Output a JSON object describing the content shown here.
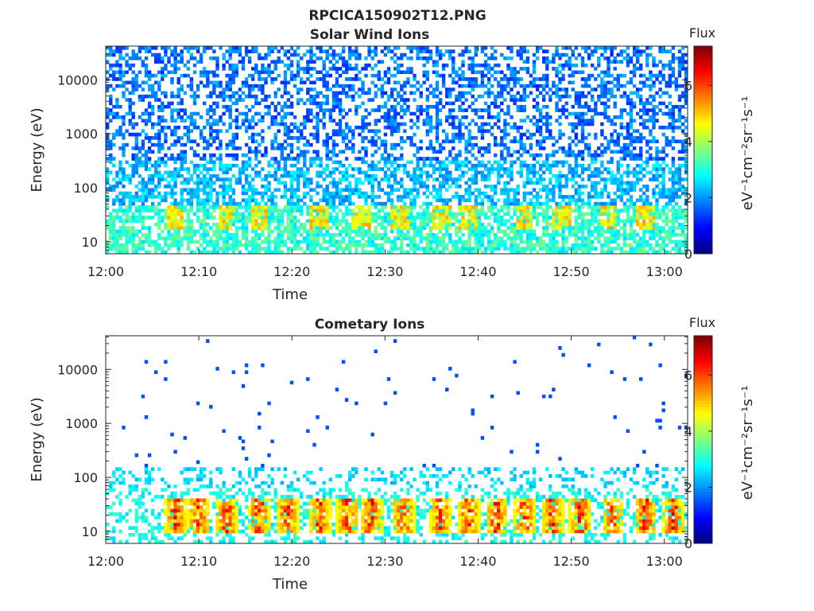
{
  "figure_title": "RPCICA150902T12.PNG",
  "chart_data": [
    {
      "type": "heatmap",
      "title": "Solar Wind Ions",
      "xlabel": "Time",
      "ylabel": "Energy (eV)",
      "x_ticks": [
        "12:00",
        "12:10",
        "12:20",
        "12:30",
        "12:40",
        "12:50",
        "13:00"
      ],
      "x_range_minutes": [
        0,
        62.5
      ],
      "y_scale": "log",
      "y_ticks": [
        10,
        100,
        1000,
        10000
      ],
      "y_tick_labels": [
        "10",
        "100",
        "1000",
        "10000"
      ],
      "y_range": [
        6,
        42000
      ],
      "colorbar": {
        "title": "Flux",
        "label": "eV⁻¹cm⁻²sr⁻¹s⁻¹",
        "range": [
          0,
          7.4
        ],
        "ticks": [
          0,
          2,
          4,
          6
        ],
        "colormap": "jet"
      },
      "description_levels": {
        "high_energy_flux_range": [
          1.5,
          2.5
        ],
        "low_energy_flux_range": [
          2.5,
          5.0
        ],
        "peak_energy_eV": 30,
        "peak_times_minutes": [
          7.5,
          13,
          16.5,
          23,
          27.5,
          31.5,
          36,
          39,
          45,
          49,
          54,
          58
        ]
      }
    },
    {
      "type": "heatmap",
      "title": "Cometary Ions",
      "xlabel": "Time",
      "ylabel": "Energy (eV)",
      "x_ticks": [
        "12:00",
        "12:10",
        "12:20",
        "12:30",
        "12:40",
        "12:50",
        "13:00"
      ],
      "x_range_minutes": [
        0,
        62.5
      ],
      "y_scale": "log",
      "y_ticks": [
        10,
        100,
        1000,
        10000
      ],
      "y_tick_labels": [
        "10",
        "100",
        "1000",
        "10000"
      ],
      "y_range": [
        6,
        42000
      ],
      "colorbar": {
        "title": "Flux",
        "label": "eV⁻¹cm⁻²sr⁻¹s⁻¹",
        "range": [
          0,
          7.4
        ],
        "ticks": [
          0,
          2,
          4,
          6
        ],
        "colormap": "jet"
      },
      "description_levels": {
        "background_flux_range": [
          2.0,
          3.0
        ],
        "peak_flux": 7.0,
        "peak_energy_eV": 20,
        "burst_times_minutes": [
          7.5,
          10,
          13,
          16.5,
          19.5,
          23,
          26,
          28.5,
          32,
          36,
          39,
          42,
          45,
          48,
          51,
          54.5,
          58,
          61
        ]
      }
    }
  ]
}
